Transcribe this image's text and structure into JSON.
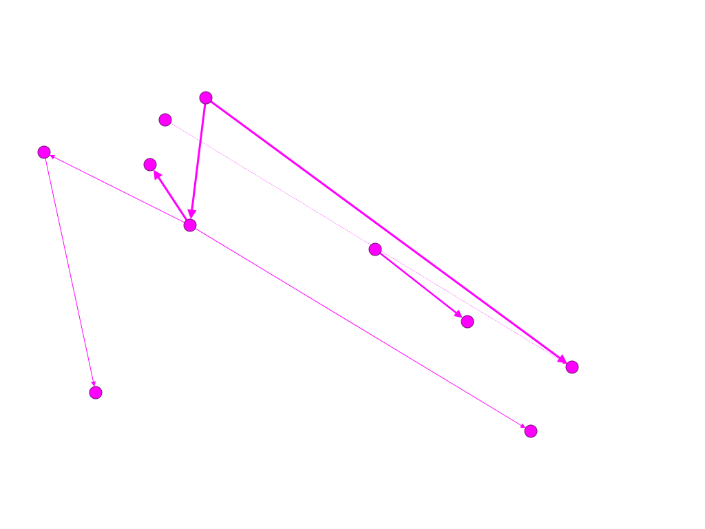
{
  "graph": {
    "type": "directed-graph",
    "node_color": "#ff00ff",
    "node_stroke": "#6a1a6a",
    "edge_color": "#ff00ff",
    "nodes": [
      {
        "id": "n1"
      },
      {
        "id": "n2"
      },
      {
        "id": "n3"
      },
      {
        "id": "n4"
      },
      {
        "id": "n5"
      },
      {
        "id": "n6"
      },
      {
        "id": "n7"
      },
      {
        "id": "n8"
      },
      {
        "id": "n9"
      },
      {
        "id": "n10"
      }
    ],
    "edges": [
      {
        "source": "n1",
        "target": "n5",
        "weight": 3
      },
      {
        "source": "n1",
        "target": "n9",
        "weight": 3
      },
      {
        "source": "n2",
        "target": "n9",
        "weight": 0.5
      },
      {
        "source": "n5",
        "target": "n4",
        "weight": 3
      },
      {
        "source": "n5",
        "target": "n3",
        "weight": 1
      },
      {
        "source": "n5",
        "target": "n10",
        "weight": 1
      },
      {
        "source": "n3",
        "target": "n8",
        "weight": 1
      },
      {
        "source": "n6",
        "target": "n7",
        "weight": 2.5
      }
    ]
  }
}
